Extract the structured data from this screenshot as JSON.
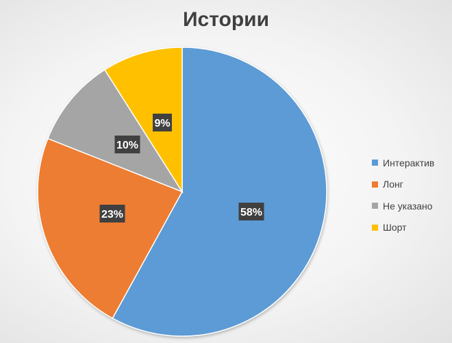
{
  "chart_data": {
    "type": "pie",
    "title": "Истории",
    "categories": [
      "Интерактив",
      "Лонг",
      "Не указано",
      "Шорт"
    ],
    "values": [
      58,
      23,
      10,
      9
    ],
    "data_labels": [
      "58%",
      "23%",
      "10%",
      "9%"
    ],
    "colors": [
      "#5B9BD5",
      "#ED7D31",
      "#A5A5A5",
      "#FFC000"
    ],
    "legend_position": "right",
    "start_angle": "top, clockwise"
  }
}
